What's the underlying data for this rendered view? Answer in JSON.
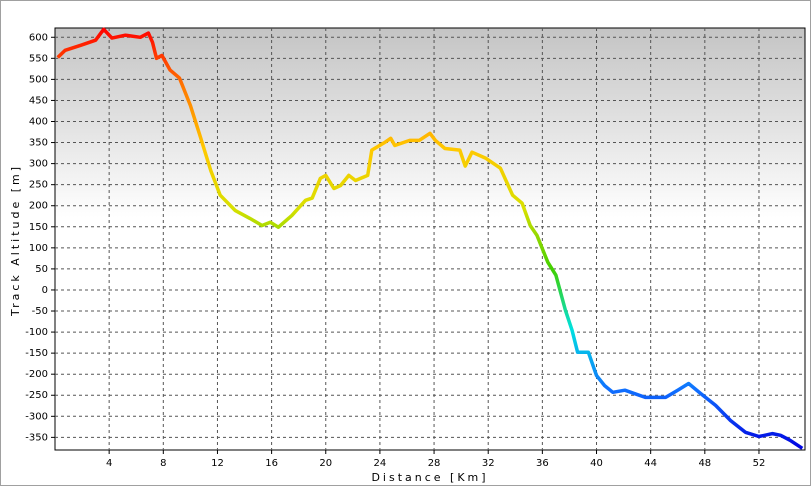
{
  "chart_data": {
    "type": "line",
    "x_label": "Distance [Km]",
    "y_label": "Track Altitude [m]",
    "x": [
      0.2,
      0.75,
      1.9,
      3,
      3.6,
      4.2,
      5.2,
      6.3,
      6.9,
      7.2,
      7.5,
      7.9,
      8.5,
      9.2,
      10,
      10.7,
      11.5,
      12.2,
      13.3,
      14.4,
      15.3,
      15.9,
      16.5,
      17.5,
      18.5,
      19,
      19.6,
      20,
      20.6,
      21.1,
      21.7,
      22.2,
      23.1,
      23.4,
      24.4,
      24.8,
      25.1,
      26.2,
      26.9,
      27.7,
      28.1,
      28.8,
      29.9,
      30.3,
      30.8,
      31.8,
      32.9,
      33.8,
      34.5,
      35.1,
      35.6,
      36.4,
      37,
      37.7,
      38.2,
      38.6,
      39.4,
      40,
      40.6,
      41.2,
      42.1,
      43.6,
      45.1,
      46,
      46.8,
      47.7,
      48.8,
      49.9,
      51,
      52,
      53,
      53.6,
      54.3,
      55.2
    ],
    "values": [
      552,
      569,
      581,
      593,
      619,
      598,
      605,
      600,
      610,
      588,
      550,
      557,
      522,
      503,
      438,
      367,
      284,
      225,
      189,
      170,
      153,
      161,
      149,
      177,
      213,
      218,
      265,
      272,
      241,
      248,
      272,
      260,
      272,
      332,
      351,
      360,
      343,
      355,
      355,
      372,
      355,
      336,
      332,
      294,
      327,
      313,
      289,
      225,
      206,
      153,
      130,
      66,
      35,
      -48,
      -96,
      -148,
      -148,
      -203,
      -227,
      -243,
      -238,
      -255,
      -255,
      -238,
      -222,
      -246,
      -274,
      -310,
      -338,
      -348,
      -341,
      -345,
      -357,
      -376
    ],
    "gradient_colors": [
      "#ff0000",
      "#ff7a00",
      "#ffc800",
      "#d8e000",
      "#40d000",
      "#00e0e0",
      "#1070ff",
      "#0000e0"
    ],
    "xlim": [
      0,
      55.4
    ],
    "ylim": [
      -380,
      622
    ],
    "xticks": [
      4,
      8,
      12,
      16,
      20,
      24,
      28,
      32,
      36,
      40,
      44,
      48,
      52
    ],
    "yticks": [
      -350,
      -300,
      -250,
      -200,
      -150,
      -100,
      -50,
      0,
      50,
      100,
      150,
      200,
      250,
      300,
      350,
      400,
      450,
      500,
      550,
      600
    ],
    "grid": true
  }
}
